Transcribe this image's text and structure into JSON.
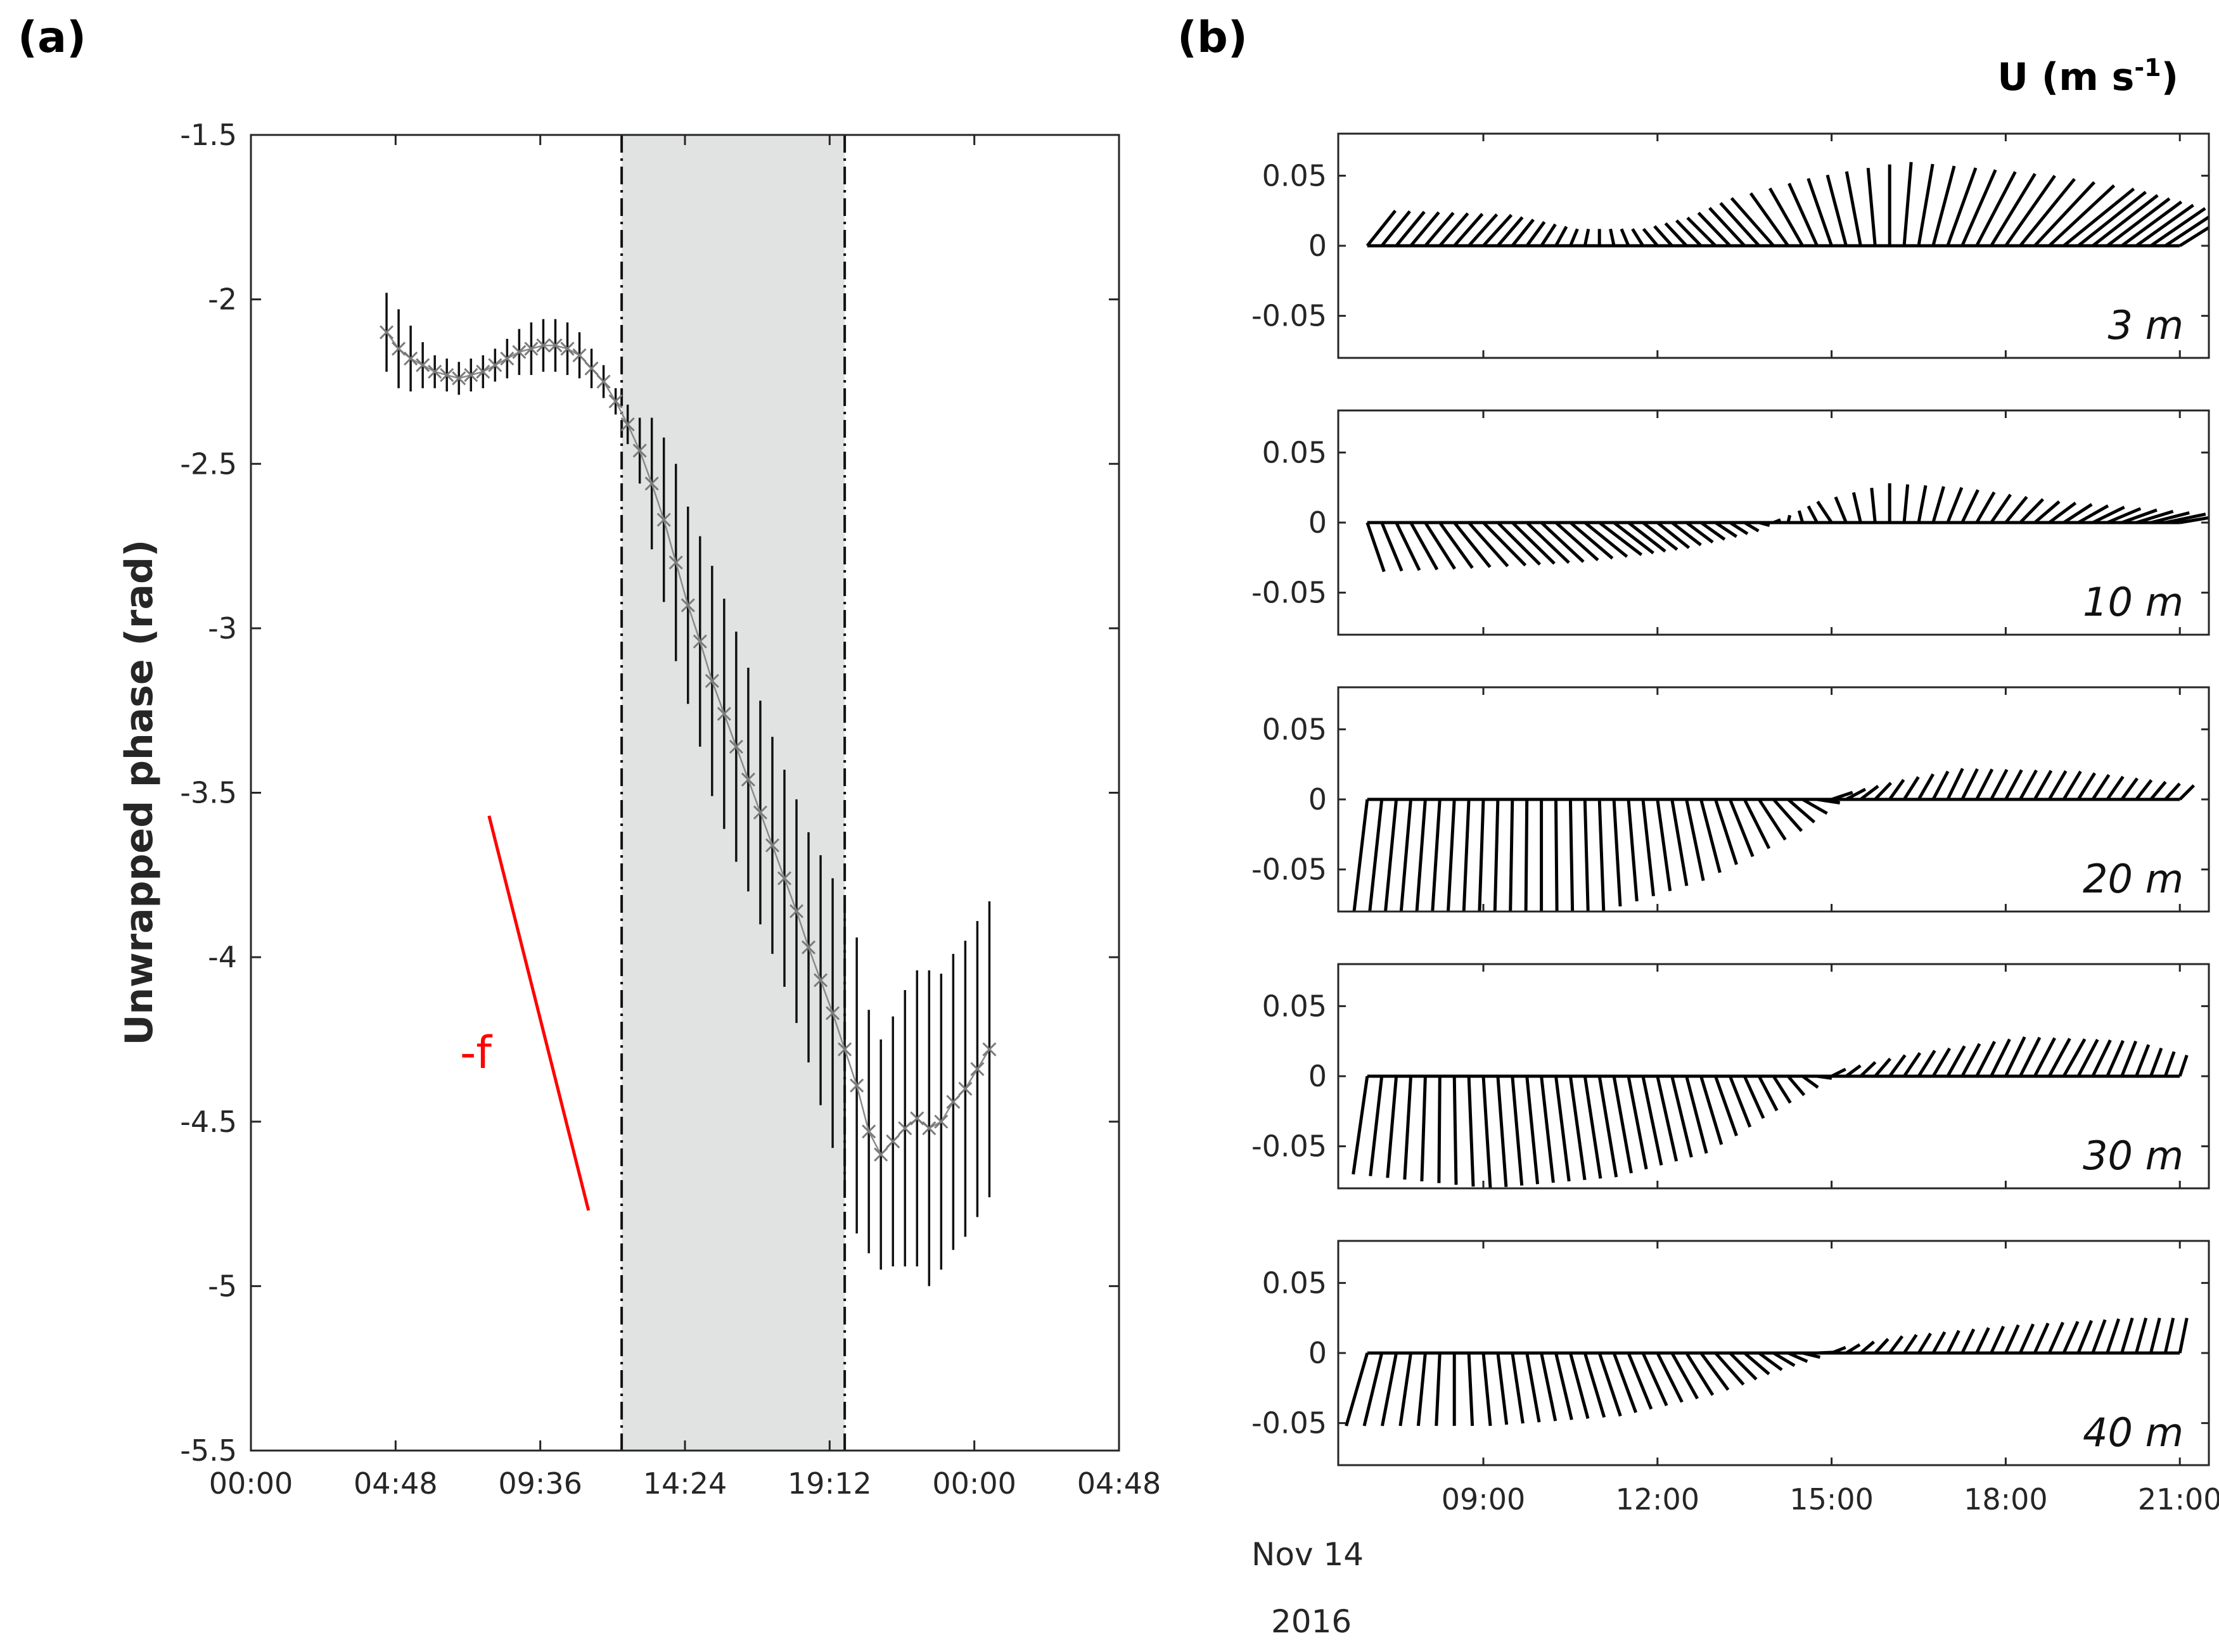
{
  "panel_a": {
    "label": "(a)",
    "ylabel": "Unwrapped phase (rad)",
    "annotation": "-f",
    "chart_data": {
      "type": "scatter",
      "title": "",
      "xlabel": "",
      "ylabel": "Unwrapped phase (rad)",
      "ylim": [
        -5.5,
        -1.5
      ],
      "xlim_hours": [
        0,
        28.8
      ],
      "x_tick_labels": [
        "00:00",
        "04:48",
        "09:36",
        "14:24",
        "19:12",
        "00:00",
        "04:48"
      ],
      "y_ticks": [
        -1.5,
        -2,
        -2.5,
        -3,
        -3.5,
        -4,
        -4.5,
        -5,
        -5.5
      ],
      "y_tick_labels": [
        "-1.5",
        "-2",
        "-2.5",
        "-3",
        "-3.5",
        "-4",
        "-4.5",
        "-5",
        "-5.5"
      ],
      "series": [
        {
          "name": "unwrapped phase",
          "marker": "x",
          "x_hours": [
            4.5,
            4.9,
            5.3,
            5.7,
            6.1,
            6.5,
            6.9,
            7.3,
            7.7,
            8.1,
            8.5,
            8.9,
            9.3,
            9.7,
            10.1,
            10.5,
            10.9,
            11.3,
            11.7,
            12.1,
            12.5,
            12.9,
            13.3,
            13.7,
            14.1,
            14.5,
            14.9,
            15.3,
            15.7,
            16.1,
            16.5,
            16.9,
            17.3,
            17.7,
            18.1,
            18.5,
            18.9,
            19.3,
            19.7,
            20.1,
            20.5,
            20.9,
            21.3,
            21.7,
            22.1,
            22.5,
            22.9,
            23.3,
            23.7,
            24.1,
            24.5
          ],
          "y": [
            -2.1,
            -2.15,
            -2.18,
            -2.2,
            -2.22,
            -2.23,
            -2.24,
            -2.23,
            -2.22,
            -2.2,
            -2.18,
            -2.16,
            -2.15,
            -2.14,
            -2.14,
            -2.15,
            -2.17,
            -2.21,
            -2.25,
            -2.31,
            -2.38,
            -2.46,
            -2.56,
            -2.67,
            -2.8,
            -2.93,
            -3.04,
            -3.16,
            -3.26,
            -3.36,
            -3.46,
            -3.56,
            -3.66,
            -3.76,
            -3.86,
            -3.97,
            -4.07,
            -4.17,
            -4.28,
            -4.39,
            -4.53,
            -4.6,
            -4.56,
            -4.52,
            -4.49,
            -4.52,
            -4.5,
            -4.44,
            -4.4,
            -4.34,
            -4.28
          ],
          "err": [
            0.12,
            0.12,
            0.1,
            0.07,
            0.05,
            0.05,
            0.05,
            0.05,
            0.05,
            0.05,
            0.06,
            0.07,
            0.08,
            0.08,
            0.08,
            0.08,
            0.07,
            0.06,
            0.05,
            0.04,
            0.06,
            0.1,
            0.2,
            0.25,
            0.3,
            0.3,
            0.32,
            0.35,
            0.35,
            0.35,
            0.34,
            0.34,
            0.33,
            0.33,
            0.34,
            0.35,
            0.38,
            0.41,
            0.45,
            0.45,
            0.37,
            0.35,
            0.38,
            0.42,
            0.45,
            0.48,
            0.45,
            0.45,
            0.45,
            0.45,
            0.45
          ]
        }
      ],
      "shaded_region_hours": [
        12.3,
        19.7
      ],
      "vertical_lines_hours": [
        12.3,
        19.7
      ],
      "reference_line": {
        "label": "-f",
        "color": "#ff0000",
        "x_hours": [
          7.9,
          11.2
        ],
        "y": [
          -3.57,
          -4.77
        ]
      }
    }
  },
  "panel_b": {
    "label": "(b)",
    "units_label": "U (m s",
    "units_superscript": "-1",
    "units_suffix": ")",
    "date_label": "Nov 14",
    "year_label": "2016",
    "chart_data": {
      "type": "quiver",
      "x_tick_labels": [
        "09:00",
        "12:00",
        "15:00",
        "18:00",
        "21:00"
      ],
      "xlim_hours": [
        6.5,
        21.5
      ],
      "y_tick_labels": [
        "0.05",
        "0",
        "-0.05"
      ],
      "ylim": [
        -0.08,
        0.08
      ],
      "subplots": [
        {
          "depth": "3 m",
          "u_ctrl": [
            [
              7,
              0.02
            ],
            [
              9,
              0.02
            ],
            [
              12,
              -0.01
            ],
            [
              14,
              -0.03
            ],
            [
              15.5,
              -0.01
            ],
            [
              17,
              0.02
            ],
            [
              19,
              0.05
            ],
            [
              21,
              0.035
            ]
          ],
          "v_ctrl": [
            [
              7,
              0.025
            ],
            [
              9,
              0.022
            ],
            [
              10.5,
              0.012
            ],
            [
              12,
              0.012
            ],
            [
              13,
              0.02
            ],
            [
              15,
              0.048
            ],
            [
              16.2,
              0.06
            ],
            [
              18,
              0.05
            ],
            [
              21,
              0.022
            ]
          ]
        },
        {
          "depth": "10 m",
          "u_ctrl": [
            [
              7,
              0.012
            ],
            [
              9,
              0.03
            ],
            [
              11,
              0.03
            ],
            [
              13,
              0.015
            ],
            [
              14,
              0.005
            ],
            [
              15,
              -0.01
            ],
            [
              17,
              0.01
            ],
            [
              21,
              0.03
            ]
          ],
          "v_ctrl": [
            [
              7,
              -0.035
            ],
            [
              8,
              -0.033
            ],
            [
              10,
              -0.028
            ],
            [
              12,
              -0.018
            ],
            [
              13.5,
              -0.006
            ],
            [
              14,
              0.002
            ],
            [
              15,
              0.015
            ],
            [
              16,
              0.028
            ],
            [
              17,
              0.025
            ],
            [
              18.5,
              0.015
            ],
            [
              21,
              0.005
            ]
          ]
        },
        {
          "depth": "20 m",
          "u_ctrl": [
            [
              7,
              -0.01
            ],
            [
              9,
              -0.003
            ],
            [
              11,
              0.003
            ],
            [
              13,
              0.015
            ],
            [
              14,
              0.02
            ],
            [
              15,
              0.015
            ],
            [
              16,
              0.01
            ],
            [
              19,
              0.012
            ],
            [
              21,
              0.01
            ]
          ],
          "v_ctrl": [
            [
              7,
              -0.085
            ],
            [
              9,
              -0.087
            ],
            [
              11,
              -0.08
            ],
            [
              12.5,
              -0.058
            ],
            [
              13.5,
              -0.035
            ],
            [
              14.5,
              -0.01
            ],
            [
              15,
              0.005
            ],
            [
              16,
              0.014
            ],
            [
              17,
              0.022
            ],
            [
              19,
              0.02
            ],
            [
              21,
              0.01
            ]
          ]
        },
        {
          "depth": "30 m",
          "u_ctrl": [
            [
              7,
              -0.01
            ],
            [
              9,
              0.005
            ],
            [
              11,
              0.012
            ],
            [
              13,
              0.015
            ],
            [
              14,
              0.012
            ],
            [
              15,
              0.01
            ],
            [
              17,
              0.012
            ],
            [
              19,
              0.015
            ],
            [
              21,
              0.005
            ]
          ],
          "v_ctrl": [
            [
              7,
              -0.07
            ],
            [
              9,
              -0.08
            ],
            [
              11,
              -0.072
            ],
            [
              12.5,
              -0.055
            ],
            [
              13.5,
              -0.03
            ],
            [
              14.5,
              -0.008
            ],
            [
              15,
              0.005
            ],
            [
              16,
              0.015
            ],
            [
              18,
              0.028
            ],
            [
              20,
              0.025
            ],
            [
              21,
              0.015
            ]
          ]
        },
        {
          "depth": "40 m",
          "u_ctrl": [
            [
              7,
              -0.015
            ],
            [
              9,
              0.005
            ],
            [
              11,
              0.015
            ],
            [
              13,
              0.02
            ],
            [
              14,
              0.015
            ],
            [
              15,
              0.01
            ],
            [
              17,
              0.008
            ],
            [
              19,
              0.01
            ],
            [
              21,
              0.005
            ]
          ],
          "v_ctrl": [
            [
              7,
              -0.052
            ],
            [
              9,
              -0.052
            ],
            [
              11,
              -0.045
            ],
            [
              12.5,
              -0.03
            ],
            [
              13.5,
              -0.015
            ],
            [
              14.5,
              -0.003
            ],
            [
              15,
              0.004
            ],
            [
              16,
              0.012
            ],
            [
              18,
              0.02
            ],
            [
              20,
              0.025
            ],
            [
              21,
              0.025
            ]
          ]
        }
      ]
    }
  }
}
